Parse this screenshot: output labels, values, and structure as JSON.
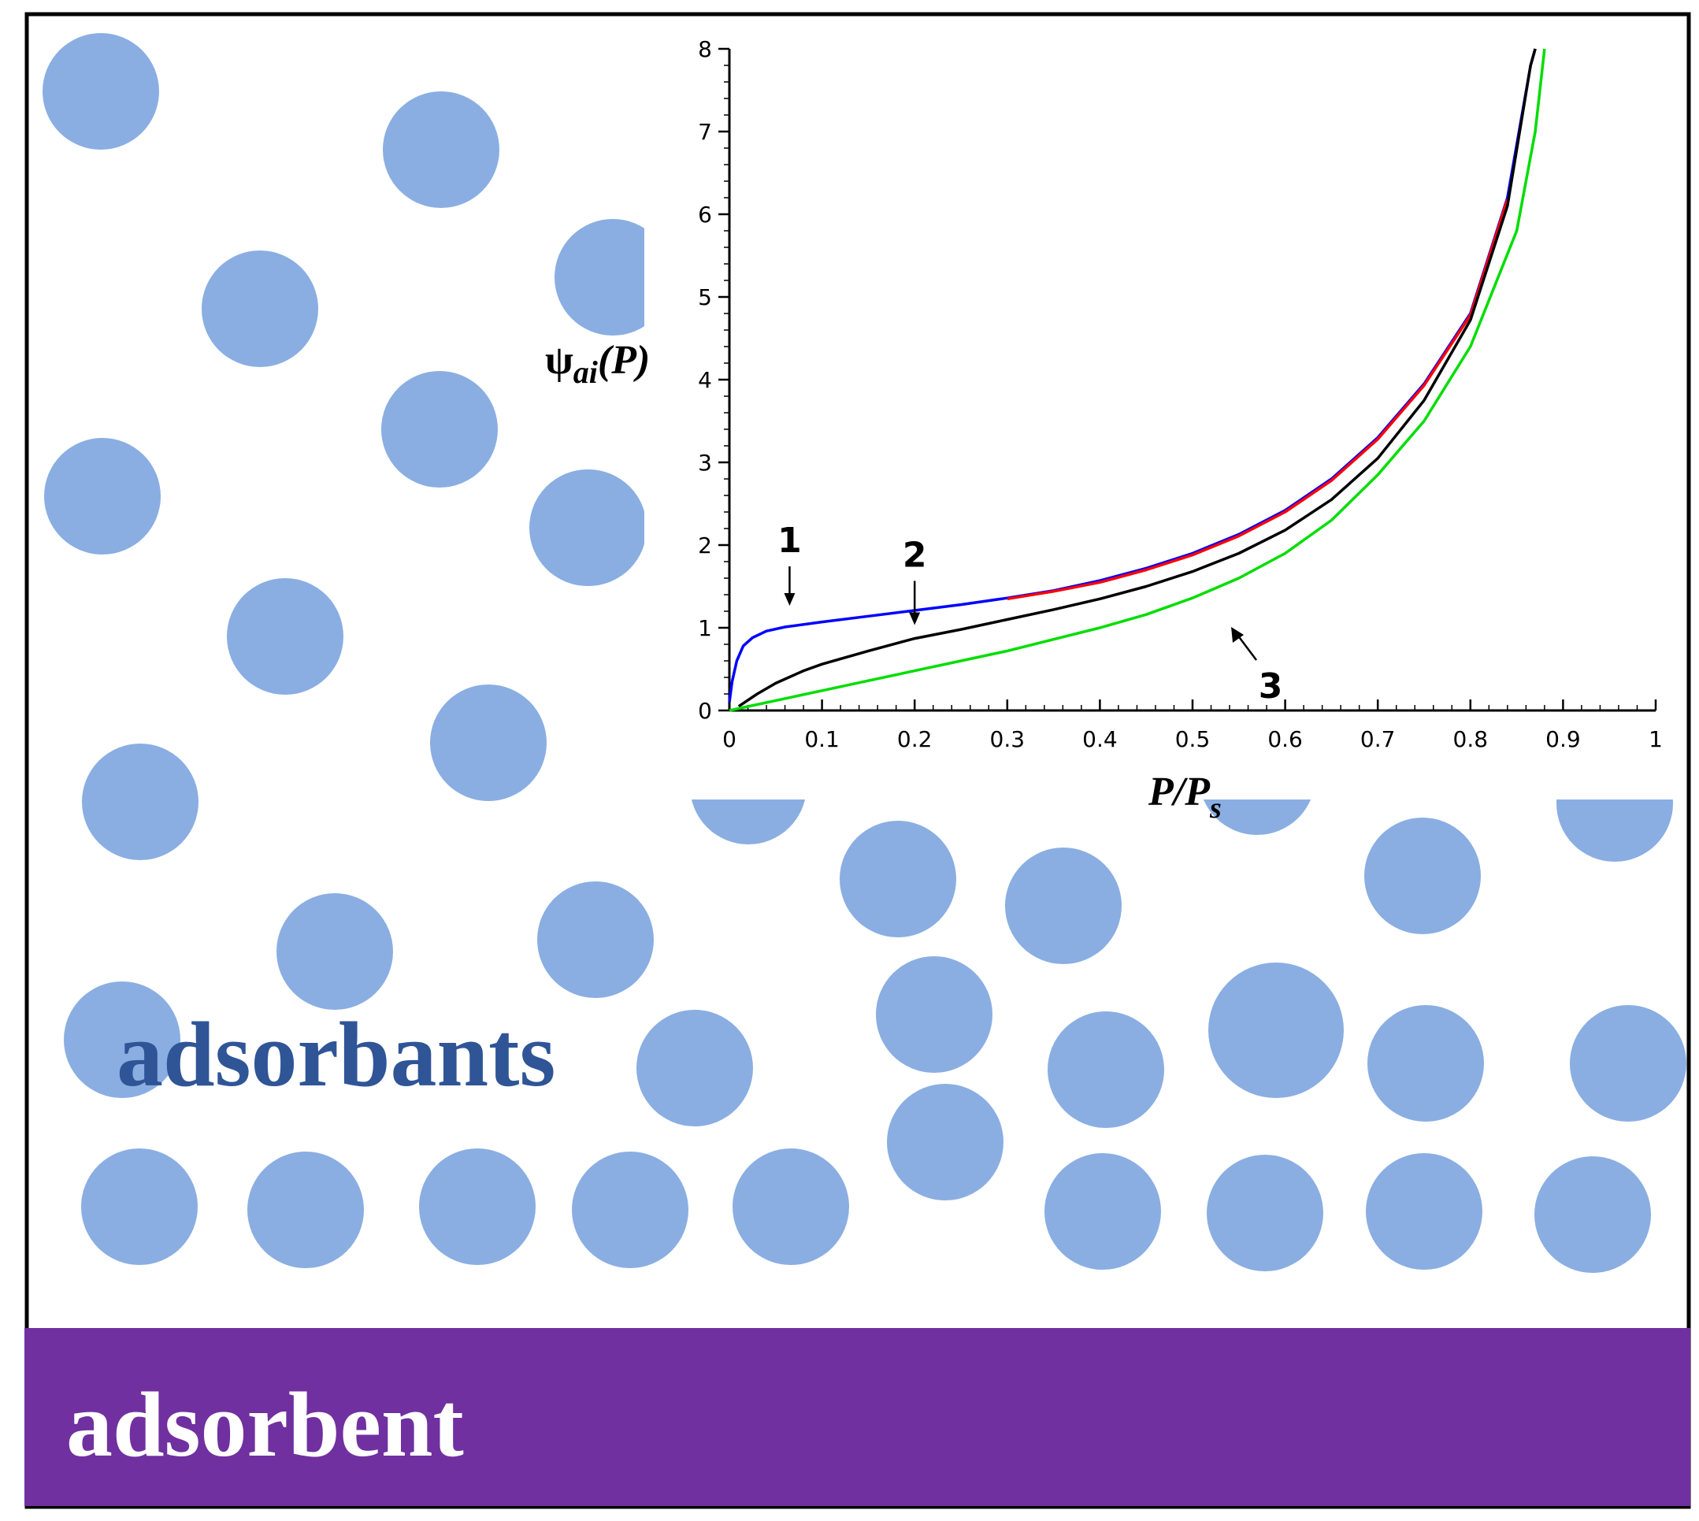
{
  "labels": {
    "adsorbants": "adsorbants",
    "adsorbent": "adsorbent"
  },
  "colors": {
    "particle": "#8aaee2",
    "adsorbent_bar": "#7030a0",
    "adsorbants_text": "#2f5597",
    "adsorbent_text": "#ffffff",
    "frame": "#000000"
  },
  "inset": {
    "ylabel": "ψai(P)",
    "ylabel_parts": {
      "psi": "ψ",
      "sub": "ai",
      "arg": "(P)"
    },
    "xlabel": "P/Ps",
    "xlabel_parts": {
      "main": "P/P",
      "sub": "s"
    },
    "curve_labels": [
      "1",
      "2",
      "3"
    ],
    "x_ticks": [
      "0",
      "0.1",
      "0.2",
      "0.3",
      "0.4",
      "0.5",
      "0.6",
      "0.7",
      "0.8",
      "0.9",
      "1"
    ],
    "y_ticks": [
      "0",
      "1",
      "2",
      "3",
      "4",
      "5",
      "6",
      "7",
      "8"
    ]
  },
  "chart_data": {
    "type": "line",
    "xlim": [
      0,
      1
    ],
    "ylim": [
      0,
      8
    ],
    "series": [
      {
        "color": "#0000ff",
        "points": [
          [
            0,
            0.1
          ],
          [
            0.003,
            0.35
          ],
          [
            0.008,
            0.6
          ],
          [
            0.015,
            0.78
          ],
          [
            0.025,
            0.88
          ],
          [
            0.04,
            0.96
          ],
          [
            0.06,
            1.01
          ],
          [
            0.1,
            1.07
          ],
          [
            0.15,
            1.14
          ],
          [
            0.2,
            1.21
          ],
          [
            0.25,
            1.28
          ],
          [
            0.3,
            1.36
          ],
          [
            0.35,
            1.45
          ],
          [
            0.4,
            1.57
          ],
          [
            0.45,
            1.72
          ],
          [
            0.5,
            1.9
          ],
          [
            0.55,
            2.13
          ],
          [
            0.6,
            2.42
          ],
          [
            0.65,
            2.8
          ],
          [
            0.7,
            3.3
          ],
          [
            0.75,
            3.95
          ],
          [
            0.8,
            4.8
          ],
          [
            0.84,
            6.2
          ],
          [
            0.865,
            7.8
          ],
          [
            0.87,
            8.0
          ]
        ]
      },
      {
        "color": "#ff0000",
        "points": [
          [
            0.3,
            1.35
          ],
          [
            0.35,
            1.44
          ],
          [
            0.4,
            1.55
          ],
          [
            0.45,
            1.7
          ],
          [
            0.5,
            1.88
          ],
          [
            0.55,
            2.11
          ],
          [
            0.6,
            2.4
          ],
          [
            0.65,
            2.78
          ],
          [
            0.7,
            3.28
          ],
          [
            0.75,
            3.93
          ],
          [
            0.8,
            4.78
          ],
          [
            0.84,
            6.18
          ]
        ]
      },
      {
        "color": "#000000",
        "points": [
          [
            0.01,
            0.05
          ],
          [
            0.03,
            0.2
          ],
          [
            0.05,
            0.33
          ],
          [
            0.08,
            0.48
          ],
          [
            0.1,
            0.56
          ],
          [
            0.15,
            0.72
          ],
          [
            0.2,
            0.87
          ],
          [
            0.25,
            0.98
          ],
          [
            0.3,
            1.1
          ],
          [
            0.35,
            1.22
          ],
          [
            0.4,
            1.35
          ],
          [
            0.45,
            1.5
          ],
          [
            0.5,
            1.68
          ],
          [
            0.55,
            1.9
          ],
          [
            0.6,
            2.18
          ],
          [
            0.65,
            2.55
          ],
          [
            0.7,
            3.05
          ],
          [
            0.75,
            3.75
          ],
          [
            0.8,
            4.72
          ],
          [
            0.84,
            6.1
          ],
          [
            0.865,
            7.8
          ],
          [
            0.87,
            8.0
          ]
        ]
      },
      {
        "color": "#00dd00",
        "points": [
          [
            0,
            0
          ],
          [
            0.05,
            0.12
          ],
          [
            0.1,
            0.24
          ],
          [
            0.15,
            0.36
          ],
          [
            0.2,
            0.48
          ],
          [
            0.25,
            0.6
          ],
          [
            0.3,
            0.72
          ],
          [
            0.35,
            0.86
          ],
          [
            0.4,
            1.0
          ],
          [
            0.45,
            1.16
          ],
          [
            0.5,
            1.36
          ],
          [
            0.55,
            1.6
          ],
          [
            0.6,
            1.9
          ],
          [
            0.65,
            2.3
          ],
          [
            0.7,
            2.85
          ],
          [
            0.75,
            3.5
          ],
          [
            0.8,
            4.4
          ],
          [
            0.85,
            5.8
          ],
          [
            0.87,
            7.0
          ],
          [
            0.88,
            8.0
          ]
        ]
      }
    ],
    "annotations": [
      {
        "text": "1",
        "x": 0.065,
        "y": 1.0
      },
      {
        "text": "2",
        "x": 0.2,
        "y": 0.9
      },
      {
        "text": "3",
        "x": 0.54,
        "y": 1.2
      }
    ]
  }
}
